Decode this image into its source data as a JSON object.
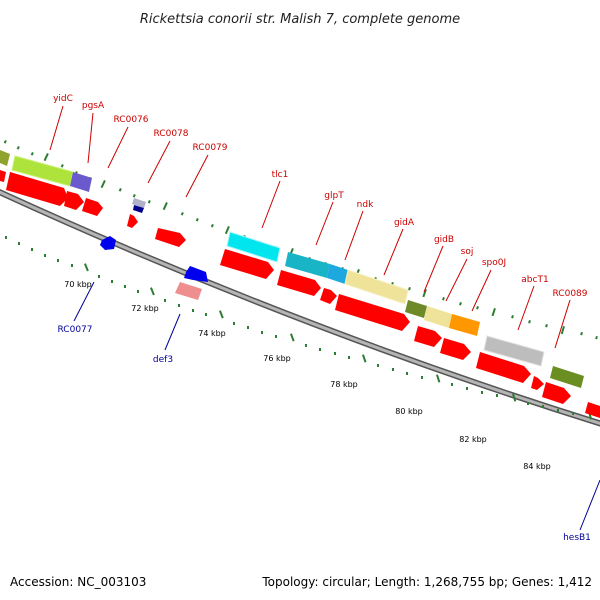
{
  "title": "Rickettsia conorii str. Malish 7, complete genome",
  "footer": {
    "accession": "Accession: NC_003103",
    "summary": "Topology: circular; Length: 1,268,755 bp; Genes: 1,412"
  },
  "colors": {
    "backbone": "#8c8c8c",
    "tick": "#2e7d32",
    "label_forward": "#cc0000",
    "label_reverse": "#000099",
    "gene_red": "#ff0000",
    "gene_blue": "#0000ee"
  },
  "kbp_labels": [
    "70 kbp",
    "72 kbp",
    "74 kbp",
    "76 kbp",
    "78 kbp",
    "80 kbp",
    "82 kbp",
    "84 kbp"
  ],
  "labels_top": [
    {
      "text": "yidC"
    },
    {
      "text": "pgsA"
    },
    {
      "text": "RC0076"
    },
    {
      "text": "RC0078"
    },
    {
      "text": "RC0079"
    },
    {
      "text": "tlc1"
    },
    {
      "text": "glpT"
    },
    {
      "text": "ndk"
    },
    {
      "text": "gidA"
    },
    {
      "text": "gidB"
    },
    {
      "text": "soj"
    },
    {
      "text": "spo0J"
    },
    {
      "text": "abcT1"
    },
    {
      "text": "RC0089"
    }
  ],
  "labels_bottom": [
    {
      "text": "RC0077"
    },
    {
      "text": "def3"
    },
    {
      "text": "hesB1"
    }
  ]
}
